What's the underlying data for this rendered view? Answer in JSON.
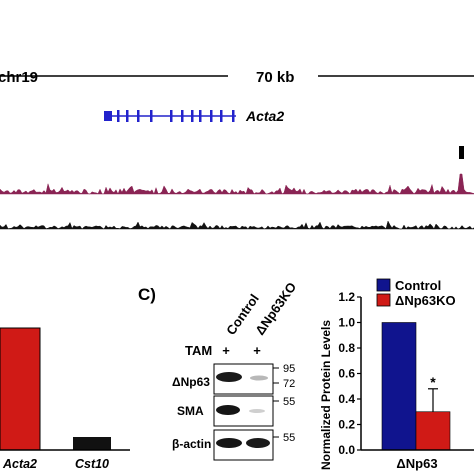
{
  "browser": {
    "chrom": "chr19",
    "scale_label": "70 kb",
    "gene": {
      "name": "Acta2",
      "color": "#2222cc"
    },
    "track_colors": {
      "signal": "#8a2454",
      "baseline": "#111111"
    }
  },
  "partial_bar_chart": {
    "labels": [
      "Acta2",
      "Cst10"
    ],
    "colors": [
      "#d01a16",
      "#111111"
    ]
  },
  "panel_c": {
    "letter": "C)",
    "lane_headers": [
      "Control",
      "ΔNp63KO"
    ],
    "tam_label": "TAM",
    "tam_signs": [
      "+",
      "+"
    ],
    "rows": [
      {
        "label": "ΔNp63",
        "markers": [
          "95",
          "72"
        ]
      },
      {
        "label": "SMA",
        "markers": [
          "55"
        ]
      },
      {
        "label": "β-actin",
        "markers": [
          "55"
        ]
      }
    ]
  },
  "chart_data": {
    "type": "bar",
    "categories": [
      "ΔNp63"
    ],
    "series": [
      {
        "name": "Control",
        "values": [
          1.0
        ],
        "color": "#10148e"
      },
      {
        "name": "ΔNp63KO",
        "values": [
          0.3
        ],
        "color": "#d01a16",
        "error": [
          0.18
        ]
      }
    ],
    "ylabel": "Normalized Protein Levels",
    "ylim": [
      0,
      1.2
    ],
    "yticks": [
      "0.0",
      "0.2",
      "0.4",
      "0.6",
      "0.8",
      "1.0",
      "1.2"
    ],
    "annotation": "*",
    "legend": "top"
  }
}
